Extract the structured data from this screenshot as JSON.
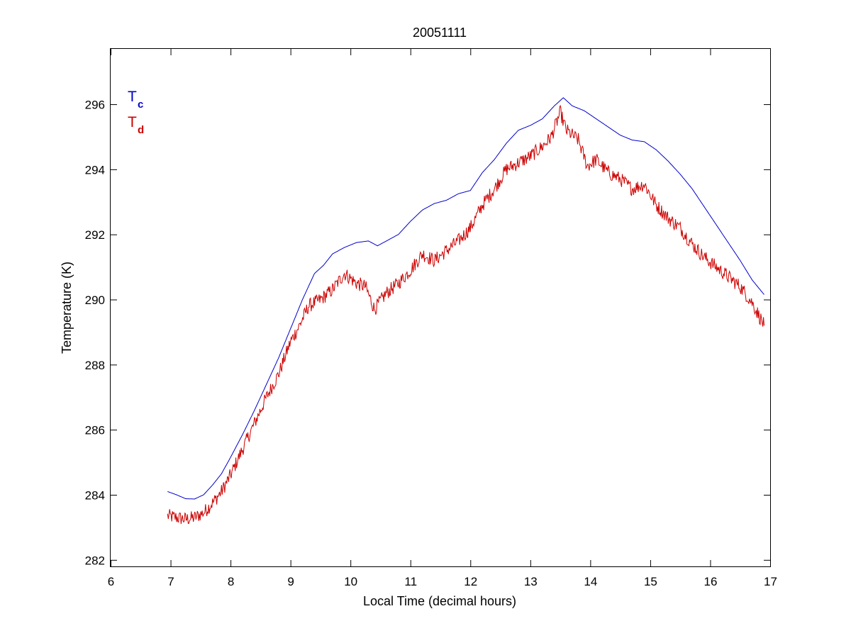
{
  "chart_data": {
    "type": "line",
    "title": "20051111",
    "xlabel": "Local Time (decimal hours)",
    "ylabel": "Temperature (K)",
    "xlim": [
      6,
      17
    ],
    "ylim": [
      281.8,
      297.7
    ],
    "xticks": [
      6,
      7,
      8,
      9,
      10,
      11,
      12,
      13,
      14,
      15,
      16,
      17
    ],
    "yticks": [
      282,
      284,
      286,
      288,
      290,
      292,
      294,
      296
    ],
    "grid": false,
    "legend_position": "top-left",
    "series": [
      {
        "name": "T",
        "subscript": "c",
        "color": "#0000cc",
        "noise": 0,
        "points": [
          [
            6.95,
            284.1
          ],
          [
            7.1,
            284.0
          ],
          [
            7.25,
            283.88
          ],
          [
            7.4,
            283.87
          ],
          [
            7.55,
            284.0
          ],
          [
            7.7,
            284.3
          ],
          [
            7.85,
            284.65
          ],
          [
            8.0,
            285.15
          ],
          [
            8.2,
            285.85
          ],
          [
            8.4,
            286.6
          ],
          [
            8.6,
            287.4
          ],
          [
            8.8,
            288.2
          ],
          [
            9.0,
            289.1
          ],
          [
            9.2,
            290.0
          ],
          [
            9.4,
            290.8
          ],
          [
            9.55,
            291.05
          ],
          [
            9.7,
            291.4
          ],
          [
            9.9,
            291.6
          ],
          [
            10.1,
            291.75
          ],
          [
            10.3,
            291.8
          ],
          [
            10.45,
            291.65
          ],
          [
            10.6,
            291.8
          ],
          [
            10.8,
            292.0
          ],
          [
            11.0,
            292.4
          ],
          [
            11.2,
            292.75
          ],
          [
            11.4,
            292.95
          ],
          [
            11.6,
            293.05
          ],
          [
            11.8,
            293.25
          ],
          [
            12.0,
            293.35
          ],
          [
            12.2,
            293.9
          ],
          [
            12.4,
            294.3
          ],
          [
            12.6,
            294.8
          ],
          [
            12.8,
            295.2
          ],
          [
            13.0,
            295.35
          ],
          [
            13.2,
            295.55
          ],
          [
            13.4,
            295.95
          ],
          [
            13.55,
            296.2
          ],
          [
            13.7,
            295.95
          ],
          [
            13.9,
            295.8
          ],
          [
            14.1,
            295.55
          ],
          [
            14.3,
            295.3
          ],
          [
            14.5,
            295.05
          ],
          [
            14.7,
            294.9
          ],
          [
            14.9,
            294.85
          ],
          [
            15.1,
            294.6
          ],
          [
            15.3,
            294.25
          ],
          [
            15.5,
            293.85
          ],
          [
            15.7,
            293.4
          ],
          [
            15.9,
            292.85
          ],
          [
            16.1,
            292.3
          ],
          [
            16.3,
            291.75
          ],
          [
            16.5,
            291.2
          ],
          [
            16.7,
            290.6
          ],
          [
            16.9,
            290.15
          ]
        ]
      },
      {
        "name": "T",
        "subscript": "d",
        "color": "#cc0000",
        "noise": 0.22,
        "points": [
          [
            6.95,
            283.35
          ],
          [
            7.1,
            283.3
          ],
          [
            7.25,
            283.25
          ],
          [
            7.4,
            283.3
          ],
          [
            7.55,
            283.45
          ],
          [
            7.7,
            283.75
          ],
          [
            7.85,
            284.1
          ],
          [
            8.0,
            284.6
          ],
          [
            8.2,
            285.4
          ],
          [
            8.4,
            286.2
          ],
          [
            8.6,
            287.0
          ],
          [
            8.8,
            287.7
          ],
          [
            9.0,
            288.7
          ],
          [
            9.15,
            289.2
          ],
          [
            9.3,
            289.8
          ],
          [
            9.5,
            290.0
          ],
          [
            9.7,
            290.3
          ],
          [
            9.9,
            290.8
          ],
          [
            10.1,
            290.5
          ],
          [
            10.25,
            290.4
          ],
          [
            10.4,
            289.7
          ],
          [
            10.6,
            290.2
          ],
          [
            10.8,
            290.5
          ],
          [
            11.0,
            290.9
          ],
          [
            11.2,
            291.4
          ],
          [
            11.4,
            291.2
          ],
          [
            11.6,
            291.5
          ],
          [
            11.8,
            291.8
          ],
          [
            12.0,
            292.2
          ],
          [
            12.2,
            292.9
          ],
          [
            12.4,
            293.4
          ],
          [
            12.6,
            294.0
          ],
          [
            12.8,
            294.2
          ],
          [
            13.0,
            294.4
          ],
          [
            13.2,
            294.7
          ],
          [
            13.35,
            295.0
          ],
          [
            13.5,
            295.75
          ],
          [
            13.6,
            295.2
          ],
          [
            13.8,
            294.9
          ],
          [
            13.95,
            294.1
          ],
          [
            14.1,
            294.3
          ],
          [
            14.3,
            293.9
          ],
          [
            14.5,
            293.7
          ],
          [
            14.7,
            293.4
          ],
          [
            14.9,
            293.55
          ],
          [
            15.1,
            292.9
          ],
          [
            15.3,
            292.5
          ],
          [
            15.5,
            292.2
          ],
          [
            15.7,
            291.7
          ],
          [
            15.9,
            291.3
          ],
          [
            16.1,
            291.0
          ],
          [
            16.3,
            290.7
          ],
          [
            16.5,
            290.4
          ],
          [
            16.7,
            289.9
          ],
          [
            16.9,
            289.2
          ]
        ]
      }
    ]
  }
}
